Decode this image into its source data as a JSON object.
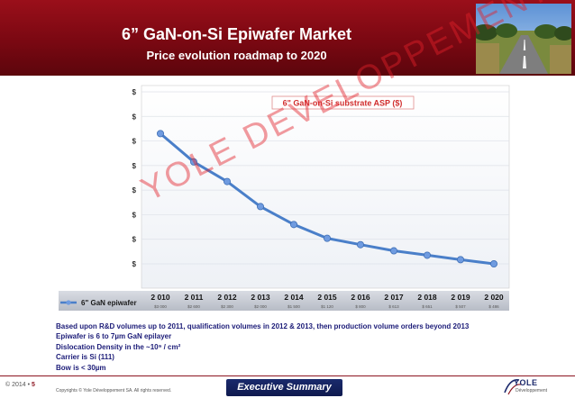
{
  "header": {
    "title": "6” GaN-on-Si Epiwafer Market",
    "subtitle": "Price evolution roadmap to 2020"
  },
  "chart_data": {
    "type": "line",
    "title": "6\" GaN-on-Si substrate ASP ($)",
    "y_tick_labels": [
      "$",
      "$",
      "$",
      "$",
      "$",
      "$",
      "$",
      "$"
    ],
    "ylim": [
      0,
      7
    ],
    "grid": true,
    "categories": [
      "2 010",
      "2 011",
      "2 012",
      "2 013",
      "2 014",
      "2 015",
      "2 016",
      "2 017",
      "2 018",
      "2 019",
      "2 020"
    ],
    "series": [
      {
        "name": "6\" GaN epiwafer",
        "values": [
          5.3,
          4.15,
          3.35,
          2.33,
          1.6,
          1.04,
          0.78,
          0.53,
          0.35,
          0.17,
          0.0
        ]
      }
    ],
    "table_row_values": [
      "$3 000",
      "$2 600",
      "$2 300",
      "$2 000",
      "$1 500",
      "$1 120",
      "$ 800",
      "$ 613",
      "$ 651",
      "$ 507",
      "$ 486"
    ]
  },
  "watermark": "YOLE DEVELOPPEMENT",
  "notes": [
    "Based upon R&D volumes up to 2011, qualification volumes in 2012 & 2013, then production volume orders beyond 2013",
    "Epiwafer is 6 to 7µm GaN epilayer",
    "Dislocation Density in the ~10⁹ / cm²",
    "Carrier is Si (111)",
    "Bow is < 30µm"
  ],
  "footer": {
    "year_page_prefix": "© 2014 •",
    "page_number": "5",
    "copyright": "Copyrights © Yole Développement SA. All rights reserved.",
    "section": "Executive Summary",
    "logo_text": "YOLE",
    "logo_sub": "Développement"
  },
  "colors": {
    "header_bg": "#7a0812",
    "line": "#4a7fc9",
    "point": "#6f9be0",
    "watermark": "#e2222b",
    "notes_text": "#1c1c78",
    "exec_bg": "#1a2a6c"
  }
}
